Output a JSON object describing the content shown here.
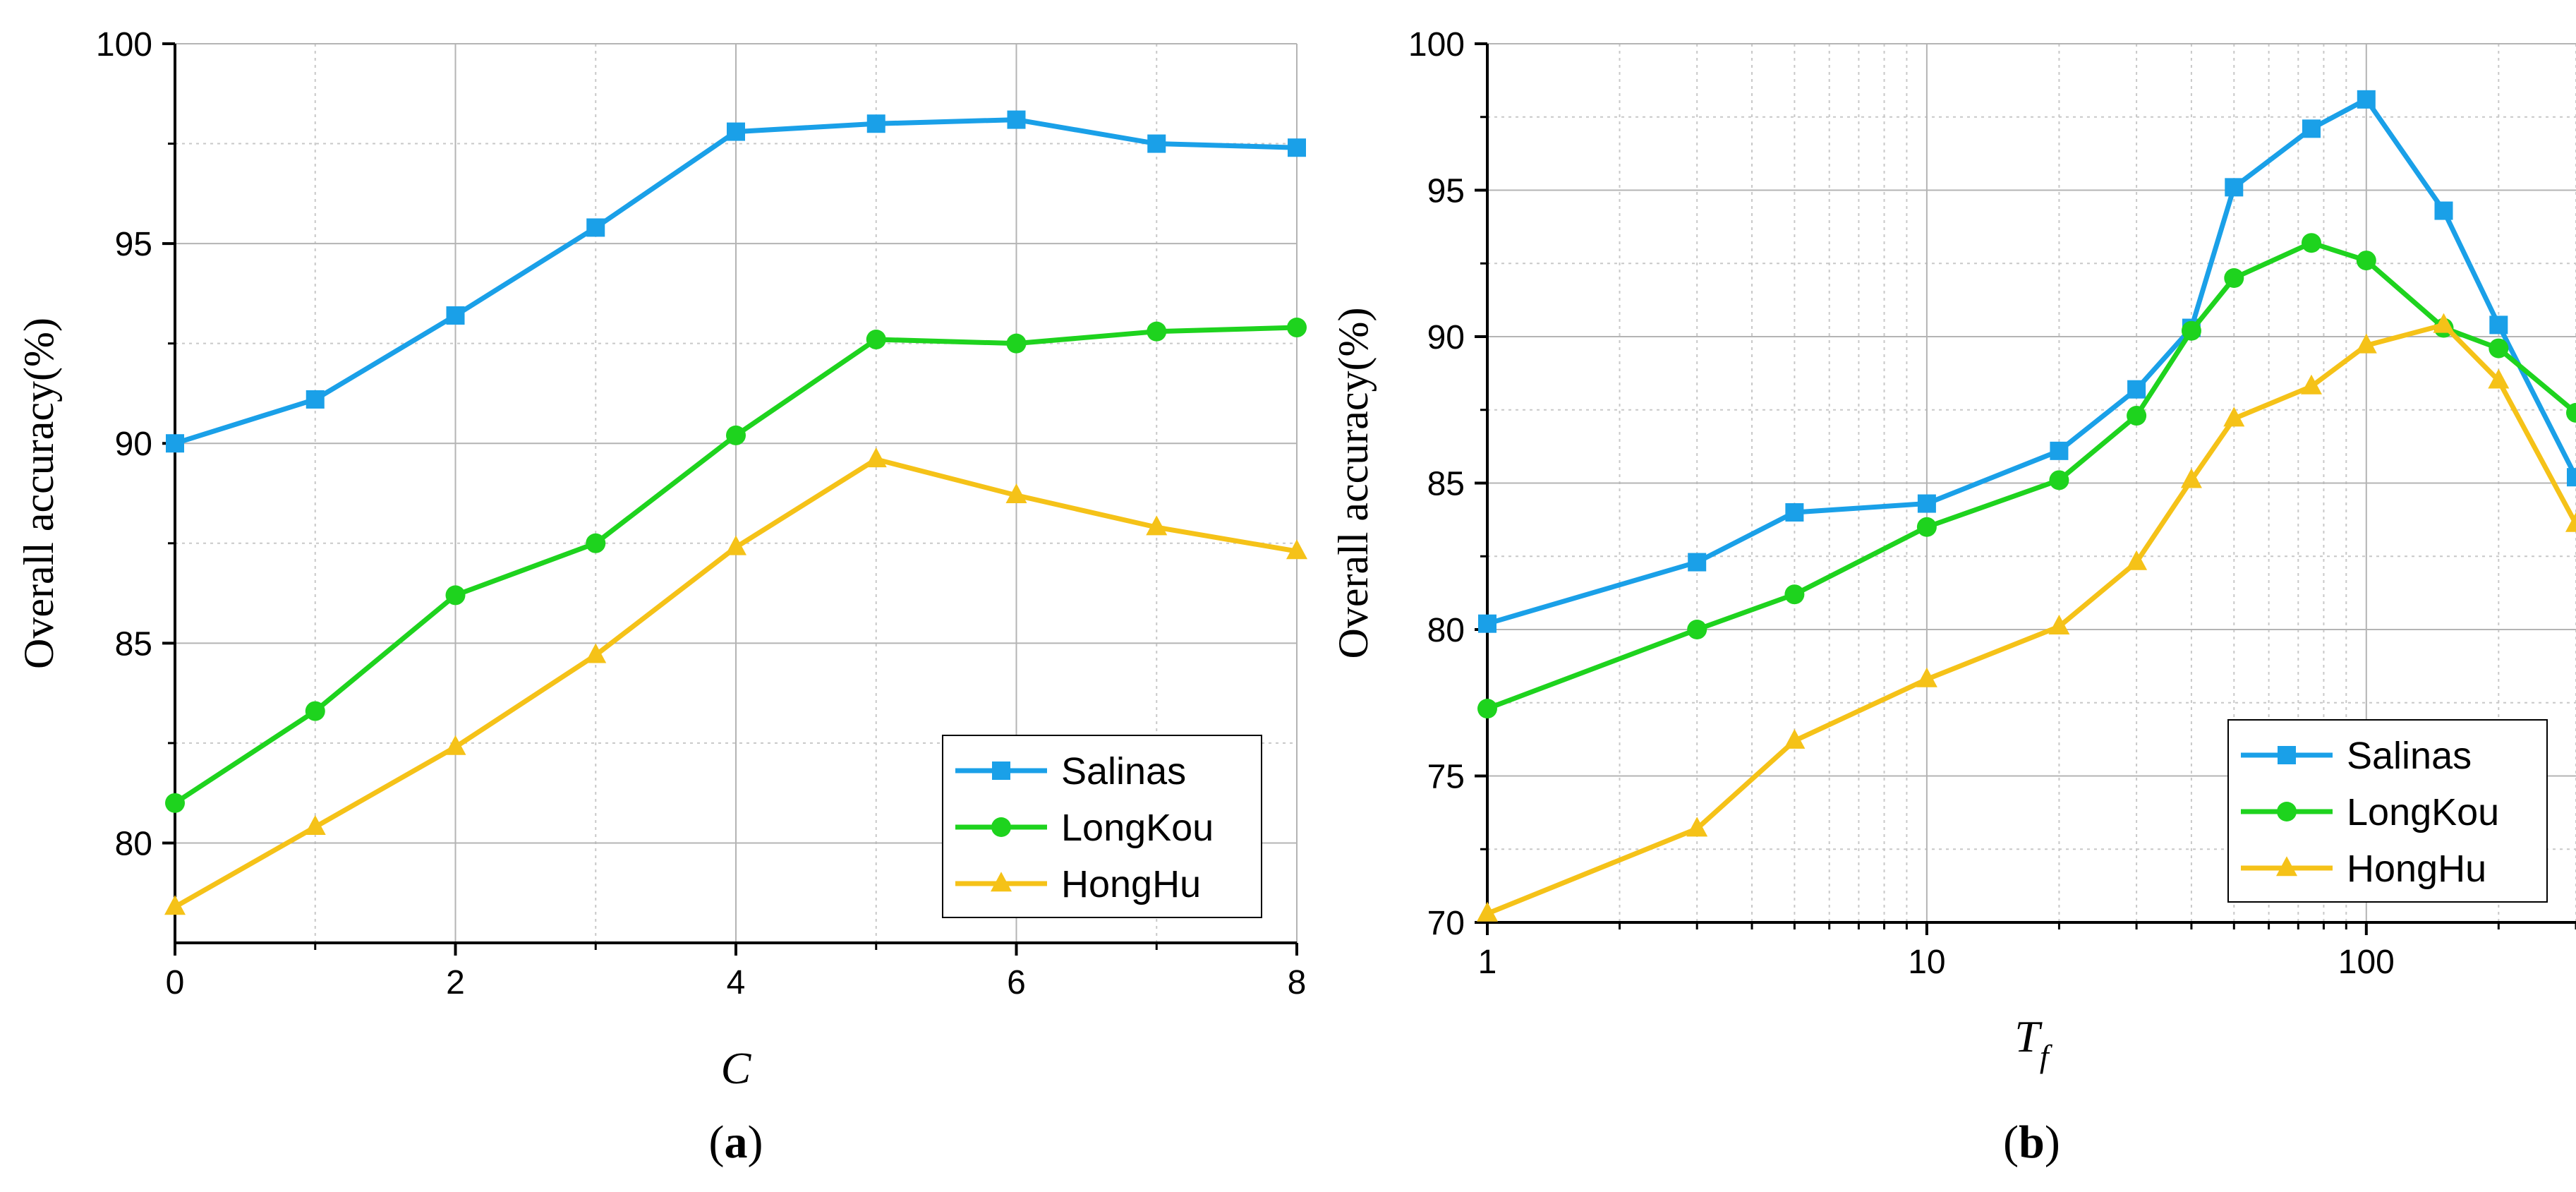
{
  "chart_data": [
    {
      "type": "line",
      "panel_label": "(a)",
      "panel_letter": "a",
      "xlabel": "C",
      "ylabel": "Overall accuracy(%)",
      "x_scale": "linear",
      "xlim": [
        0,
        8
      ],
      "ylim": [
        77.5,
        100
      ],
      "x_ticks": [
        0,
        2,
        4,
        6,
        8
      ],
      "x_tick_labels": [
        "0",
        "2",
        "4",
        "6",
        "8"
      ],
      "y_ticks": [
        80,
        85,
        90,
        95,
        100
      ],
      "y_tick_labels": [
        "80",
        "85",
        "90",
        "95",
        "100"
      ],
      "legend_position": "bottom-right",
      "grid": true,
      "x": [
        0,
        1,
        2,
        3,
        4,
        5,
        6,
        7,
        8
      ],
      "series": [
        {
          "name": "Salinas",
          "marker": "square",
          "color": "#1aa0e8",
          "values": [
            90.0,
            91.1,
            93.2,
            95.4,
            97.8,
            98.0,
            98.1,
            97.5,
            97.4
          ]
        },
        {
          "name": "LongKou",
          "marker": "circle",
          "color": "#1ed31e",
          "values": [
            81.0,
            83.3,
            86.2,
            87.5,
            90.2,
            92.6,
            92.5,
            92.8,
            92.9
          ]
        },
        {
          "name": "HongHu",
          "marker": "triangle",
          "color": "#f5c218",
          "values": [
            78.4,
            80.4,
            82.4,
            84.7,
            87.4,
            89.6,
            88.7,
            87.9,
            87.3
          ]
        }
      ]
    },
    {
      "type": "line",
      "panel_label": "(b)",
      "panel_letter": "b",
      "xlabel": "T",
      "xlabel_sub": "f",
      "ylabel": "Overall accuracy(%)",
      "x_scale": "log",
      "xlim": [
        1,
        300
      ],
      "ylim": [
        70,
        100
      ],
      "x_ticks": [
        1,
        10,
        100
      ],
      "x_tick_labels": [
        "1",
        "10",
        "100"
      ],
      "y_ticks": [
        70,
        75,
        80,
        85,
        90,
        95,
        100
      ],
      "y_tick_labels": [
        "70",
        "75",
        "80",
        "85",
        "90",
        "95",
        "100"
      ],
      "legend_position": "bottom-right",
      "grid": true,
      "x": [
        1,
        3,
        5,
        10,
        20,
        30,
        40,
        50,
        75,
        100,
        150,
        200,
        300
      ],
      "series": [
        {
          "name": "Salinas",
          "marker": "square",
          "color": "#1aa0e8",
          "values": [
            80.2,
            82.3,
            84.0,
            84.3,
            86.1,
            88.2,
            90.3,
            95.1,
            97.1,
            98.1,
            94.3,
            90.4,
            85.2
          ]
        },
        {
          "name": "LongKou",
          "marker": "circle",
          "color": "#1ed31e",
          "values": [
            77.3,
            80.0,
            81.2,
            83.5,
            85.1,
            87.3,
            90.2,
            92.0,
            93.2,
            92.6,
            90.3,
            89.6,
            87.4
          ]
        },
        {
          "name": "HongHu",
          "marker": "triangle",
          "color": "#f5c218",
          "values": [
            70.3,
            73.2,
            76.2,
            78.3,
            80.1,
            82.3,
            85.1,
            87.2,
            88.3,
            89.7,
            90.4,
            88.5,
            83.6
          ]
        }
      ]
    }
  ]
}
